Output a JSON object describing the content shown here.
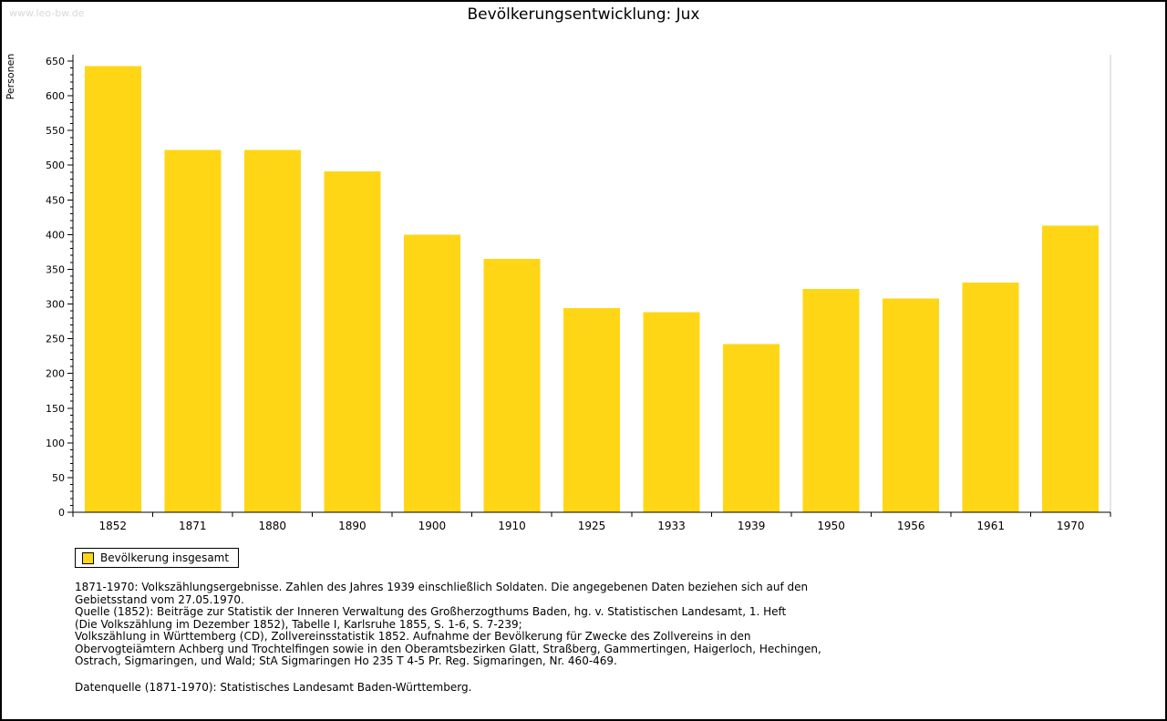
{
  "page": {
    "watermark": "www.leo-bw.de"
  },
  "chart_data": {
    "type": "bar",
    "title": "Bevölkerungsentwicklung: Jux",
    "xlabel": "",
    "ylabel": "Personen",
    "categories": [
      "1852",
      "1871",
      "1880",
      "1890",
      "1900",
      "1910",
      "1925",
      "1933",
      "1939",
      "1950",
      "1956",
      "1961",
      "1970"
    ],
    "values": [
      643,
      522,
      522,
      491,
      400,
      365,
      294,
      288,
      242,
      322,
      308,
      331,
      413
    ],
    "ylim": [
      0,
      650
    ],
    "ytick_step": 50,
    "ytick_minor_step": 10,
    "bar_color": "#FFD616",
    "axis_color": "#000000",
    "plot_border_color": "#cccccc",
    "grid": false,
    "legend": {
      "label": "Bevölkerung insgesamt",
      "position": "bottom-left"
    }
  },
  "footer": {
    "lines": [
      "1871-1970: Volkszählungsergebnisse. Zahlen des Jahres 1939 einschließlich Soldaten. Die angegebenen Daten beziehen sich auf den",
      "Gebietsstand vom 27.05.1970.",
      "Quelle (1852): Beiträge zur Statistik der Inneren Verwaltung des Großherzogthums Baden, hg. v. Statistischen Landesamt, 1. Heft",
      "(Die Volkszählung im Dezember 1852), Tabelle I, Karlsruhe 1855, S. 1-6, S. 7-239;",
      "Volkszählung in Württemberg (CD), Zollvereinsstatistik 1852. Aufnahme der Bevölkerung für Zwecke des Zollvereins in den",
      "Obervogteiämtern Achberg und Trochtelfingen sowie in den Oberamtsbezirken Glatt, Straßberg, Gammertingen, Haigerloch, Hechingen,",
      "Ostrach, Sigmaringen, und Wald; StA Sigmaringen Ho 235 T 4-5 Pr. Reg. Sigmaringen, Nr. 460-469."
    ],
    "source": "Datenquelle (1871-1970): Statistisches Landesamt Baden-Württemberg."
  }
}
